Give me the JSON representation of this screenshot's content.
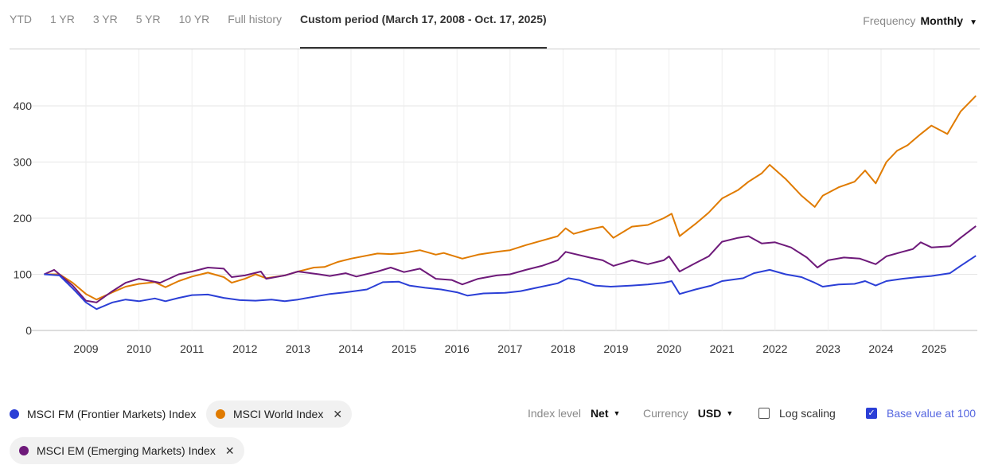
{
  "tabs": [
    "YTD",
    "1 YR",
    "3 YR",
    "5 YR",
    "10 YR",
    "Full history",
    "Custom period (March 17, 2008 - Oct. 17, 2025)"
  ],
  "frequency": {
    "label": "Frequency",
    "value": "Monthly"
  },
  "controls": {
    "index_level_label": "Index level",
    "index_level": "Net",
    "currency_label": "Currency",
    "currency": "USD",
    "log_scaling": "Log scaling",
    "log_checked": false,
    "base_value": "Base value at 100",
    "base_checked": true
  },
  "chart_data": {
    "type": "line",
    "ylim": [
      0,
      500
    ],
    "yticks": [
      0,
      100,
      200,
      300,
      400
    ],
    "xticks": [
      "2009",
      "2010",
      "2011",
      "2012",
      "2013",
      "2014",
      "2015",
      "2016",
      "2017",
      "2018",
      "2019",
      "2020",
      "2021",
      "2022",
      "2023",
      "2024",
      "2025"
    ],
    "xlim": [
      2008.21,
      2025.79
    ],
    "series": [
      {
        "name": "MSCI FM (Frontier Markets) Index",
        "color": "#2b3fd6",
        "removable": false,
        "points": [
          [
            2008.21,
            100
          ],
          [
            2008.5,
            98
          ],
          [
            2008.75,
            75
          ],
          [
            2009.0,
            50
          ],
          [
            2009.2,
            38
          ],
          [
            2009.5,
            50
          ],
          [
            2009.75,
            55
          ],
          [
            2010.0,
            52
          ],
          [
            2010.3,
            57
          ],
          [
            2010.5,
            52
          ],
          [
            2010.75,
            58
          ],
          [
            2011.0,
            63
          ],
          [
            2011.3,
            64
          ],
          [
            2011.6,
            58
          ],
          [
            2011.9,
            54
          ],
          [
            2012.2,
            53
          ],
          [
            2012.5,
            55
          ],
          [
            2012.75,
            52
          ],
          [
            2013.0,
            55
          ],
          [
            2013.3,
            60
          ],
          [
            2013.6,
            65
          ],
          [
            2013.9,
            68
          ],
          [
            2014.3,
            73
          ],
          [
            2014.6,
            86
          ],
          [
            2014.9,
            87
          ],
          [
            2015.1,
            80
          ],
          [
            2015.4,
            76
          ],
          [
            2015.7,
            73
          ],
          [
            2016.0,
            68
          ],
          [
            2016.2,
            62
          ],
          [
            2016.5,
            66
          ],
          [
            2016.9,
            67
          ],
          [
            2017.2,
            70
          ],
          [
            2017.5,
            76
          ],
          [
            2017.9,
            84
          ],
          [
            2018.1,
            93
          ],
          [
            2018.3,
            90
          ],
          [
            2018.6,
            80
          ],
          [
            2018.9,
            78
          ],
          [
            2019.3,
            80
          ],
          [
            2019.6,
            82
          ],
          [
            2019.9,
            85
          ],
          [
            2020.05,
            88
          ],
          [
            2020.2,
            65
          ],
          [
            2020.5,
            73
          ],
          [
            2020.8,
            80
          ],
          [
            2021.0,
            88
          ],
          [
            2021.4,
            93
          ],
          [
            2021.6,
            102
          ],
          [
            2021.9,
            108
          ],
          [
            2022.2,
            100
          ],
          [
            2022.5,
            95
          ],
          [
            2022.75,
            85
          ],
          [
            2022.9,
            78
          ],
          [
            2023.2,
            82
          ],
          [
            2023.5,
            83
          ],
          [
            2023.7,
            88
          ],
          [
            2023.9,
            80
          ],
          [
            2024.1,
            88
          ],
          [
            2024.4,
            92
          ],
          [
            2024.7,
            95
          ],
          [
            2024.95,
            97
          ],
          [
            2025.3,
            102
          ],
          [
            2025.5,
            115
          ],
          [
            2025.79,
            133
          ]
        ]
      },
      {
        "name": "MSCI World Index",
        "color": "#e07b00",
        "removable": true,
        "points": [
          [
            2008.21,
            100
          ],
          [
            2008.5,
            100
          ],
          [
            2008.75,
            85
          ],
          [
            2009.0,
            65
          ],
          [
            2009.2,
            55
          ],
          [
            2009.5,
            68
          ],
          [
            2009.75,
            78
          ],
          [
            2010.0,
            83
          ],
          [
            2010.3,
            86
          ],
          [
            2010.5,
            77
          ],
          [
            2010.75,
            88
          ],
          [
            2011.0,
            96
          ],
          [
            2011.3,
            103
          ],
          [
            2011.6,
            95
          ],
          [
            2011.75,
            85
          ],
          [
            2012.0,
            92
          ],
          [
            2012.2,
            100
          ],
          [
            2012.4,
            93
          ],
          [
            2012.75,
            98
          ],
          [
            2013.0,
            105
          ],
          [
            2013.3,
            112
          ],
          [
            2013.5,
            113
          ],
          [
            2013.75,
            122
          ],
          [
            2014.0,
            128
          ],
          [
            2014.5,
            137
          ],
          [
            2014.75,
            136
          ],
          [
            2015.0,
            138
          ],
          [
            2015.3,
            143
          ],
          [
            2015.6,
            135
          ],
          [
            2015.75,
            138
          ],
          [
            2016.1,
            128
          ],
          [
            2016.4,
            135
          ],
          [
            2016.75,
            140
          ],
          [
            2017.0,
            143
          ],
          [
            2017.3,
            152
          ],
          [
            2017.6,
            160
          ],
          [
            2017.9,
            168
          ],
          [
            2018.05,
            182
          ],
          [
            2018.2,
            172
          ],
          [
            2018.5,
            180
          ],
          [
            2018.75,
            185
          ],
          [
            2018.95,
            165
          ],
          [
            2019.3,
            185
          ],
          [
            2019.6,
            188
          ],
          [
            2019.9,
            200
          ],
          [
            2020.05,
            208
          ],
          [
            2020.2,
            168
          ],
          [
            2020.5,
            190
          ],
          [
            2020.75,
            210
          ],
          [
            2021.0,
            235
          ],
          [
            2021.3,
            250
          ],
          [
            2021.5,
            265
          ],
          [
            2021.75,
            280
          ],
          [
            2021.9,
            295
          ],
          [
            2022.2,
            270
          ],
          [
            2022.5,
            240
          ],
          [
            2022.75,
            220
          ],
          [
            2022.9,
            240
          ],
          [
            2023.2,
            255
          ],
          [
            2023.5,
            265
          ],
          [
            2023.7,
            285
          ],
          [
            2023.9,
            262
          ],
          [
            2024.1,
            300
          ],
          [
            2024.3,
            320
          ],
          [
            2024.5,
            330
          ],
          [
            2024.75,
            350
          ],
          [
            2024.95,
            365
          ],
          [
            2025.25,
            350
          ],
          [
            2025.5,
            390
          ],
          [
            2025.79,
            418
          ]
        ]
      },
      {
        "name": "MSCI EM (Emerging Markets) Index",
        "color": "#6e1a7a",
        "removable": true,
        "points": [
          [
            2008.21,
            100
          ],
          [
            2008.4,
            108
          ],
          [
            2008.75,
            80
          ],
          [
            2009.0,
            53
          ],
          [
            2009.2,
            50
          ],
          [
            2009.5,
            70
          ],
          [
            2009.75,
            85
          ],
          [
            2010.0,
            92
          ],
          [
            2010.4,
            85
          ],
          [
            2010.75,
            100
          ],
          [
            2011.0,
            105
          ],
          [
            2011.3,
            112
          ],
          [
            2011.6,
            110
          ],
          [
            2011.75,
            95
          ],
          [
            2012.0,
            98
          ],
          [
            2012.3,
            105
          ],
          [
            2012.4,
            92
          ],
          [
            2012.75,
            98
          ],
          [
            2013.0,
            105
          ],
          [
            2013.4,
            100
          ],
          [
            2013.6,
            97
          ],
          [
            2013.9,
            102
          ],
          [
            2014.1,
            96
          ],
          [
            2014.5,
            105
          ],
          [
            2014.75,
            112
          ],
          [
            2015.0,
            104
          ],
          [
            2015.3,
            110
          ],
          [
            2015.6,
            92
          ],
          [
            2015.9,
            90
          ],
          [
            2016.1,
            82
          ],
          [
            2016.4,
            92
          ],
          [
            2016.75,
            98
          ],
          [
            2017.0,
            100
          ],
          [
            2017.3,
            108
          ],
          [
            2017.6,
            115
          ],
          [
            2017.9,
            125
          ],
          [
            2018.05,
            140
          ],
          [
            2018.5,
            130
          ],
          [
            2018.75,
            125
          ],
          [
            2018.95,
            115
          ],
          [
            2019.3,
            125
          ],
          [
            2019.6,
            118
          ],
          [
            2019.9,
            125
          ],
          [
            2020.0,
            132
          ],
          [
            2020.2,
            105
          ],
          [
            2020.5,
            120
          ],
          [
            2020.75,
            132
          ],
          [
            2021.0,
            158
          ],
          [
            2021.3,
            165
          ],
          [
            2021.5,
            168
          ],
          [
            2021.75,
            155
          ],
          [
            2022.0,
            157
          ],
          [
            2022.3,
            148
          ],
          [
            2022.6,
            130
          ],
          [
            2022.8,
            112
          ],
          [
            2023.0,
            125
          ],
          [
            2023.3,
            130
          ],
          [
            2023.6,
            128
          ],
          [
            2023.9,
            118
          ],
          [
            2024.1,
            132
          ],
          [
            2024.4,
            140
          ],
          [
            2024.6,
            145
          ],
          [
            2024.75,
            157
          ],
          [
            2024.95,
            148
          ],
          [
            2025.3,
            150
          ],
          [
            2025.5,
            165
          ],
          [
            2025.79,
            186
          ]
        ]
      }
    ]
  }
}
